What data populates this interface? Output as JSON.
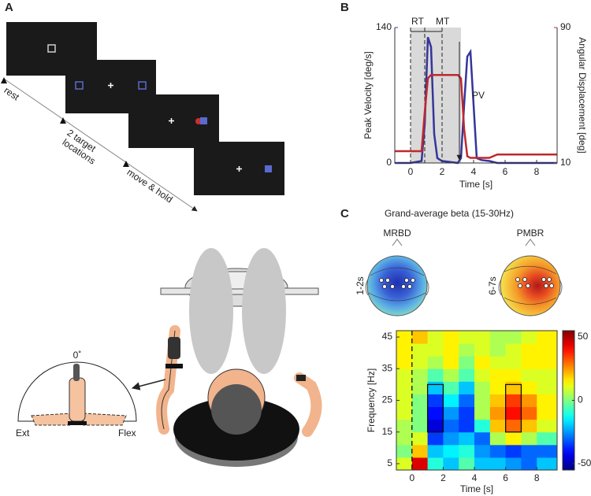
{
  "panel_labels": [
    "A",
    "B",
    "C"
  ],
  "panel_a": {
    "labels": [
      "rest",
      "2 target",
      "locations",
      "move & hold"
    ]
  },
  "setup": {
    "angle_label": "0˚",
    "left_label": "Ext",
    "right_label": "Flex"
  },
  "chart_data": [
    {
      "type": "line",
      "xlabel": "Time [s]",
      "ylabel": "Peak Velocity [deg/s]",
      "y2label": "Angular Displacement [deg]",
      "annotations": [
        "RT",
        "MT",
        "PV"
      ],
      "x": [
        -1,
        0,
        0.7,
        0.9,
        1.1,
        1.3,
        1.5,
        1.7,
        2,
        3,
        3.2,
        3.4,
        3.6,
        3.8,
        4.0,
        4.2,
        4.5,
        5,
        5.5,
        9.3
      ],
      "series": [
        {
          "name": "Peak Velocity",
          "color": "#35359a",
          "values": [
            0,
            0,
            2,
            40,
            130,
            120,
            30,
            5,
            2,
            0,
            5,
            60,
            110,
            115,
            60,
            5,
            3,
            2,
            0,
            0
          ]
        },
        {
          "name": "Angular Displacement",
          "color": "#c0282d",
          "axis": "y2",
          "values": [
            17,
            17,
            17,
            40,
            60,
            62,
            62,
            62,
            62,
            62,
            60,
            30,
            14,
            13,
            13,
            13,
            13,
            13,
            15,
            15
          ]
        }
      ],
      "shaded": [
        0,
        3.2
      ],
      "vlines": [
        0,
        0.9,
        2
      ],
      "xlim": [
        -1,
        9.3
      ],
      "xticks": [
        0,
        2,
        4,
        6,
        8
      ],
      "ylim": [
        0,
        140
      ],
      "yticks": [
        0,
        140
      ],
      "y2lim": [
        10,
        90
      ],
      "y2ticks": [
        10,
        90
      ]
    },
    {
      "type": "heatmap",
      "title": "Grand-average beta (15-30Hz)",
      "xlabel": "Time [s]",
      "ylabel": "Frequency [Hz]",
      "maps": [
        {
          "title": "MRBD",
          "window": "1-2s"
        },
        {
          "title": "PMBR",
          "window": "6-7s"
        }
      ],
      "x": [
        -0.5,
        0.5,
        1.5,
        2.5,
        3.5,
        4.5,
        5.5,
        6.5,
        7.5,
        8.5
      ],
      "y": [
        5,
        9,
        13,
        17,
        21,
        25,
        29,
        33,
        37,
        41,
        45
      ],
      "z": [
        [
          10,
          45,
          -10,
          -20,
          -5,
          -20,
          -20,
          -25,
          -30,
          -20
        ],
        [
          0,
          20,
          -20,
          -15,
          -10,
          -25,
          -30,
          -35,
          -30,
          -30
        ],
        [
          5,
          10,
          -35,
          -25,
          -20,
          -30,
          5,
          15,
          5,
          -5
        ],
        [
          5,
          0,
          -45,
          -30,
          -35,
          -10,
          20,
          30,
          20,
          10
        ],
        [
          10,
          0,
          -40,
          -25,
          -35,
          5,
          25,
          40,
          30,
          15
        ],
        [
          10,
          0,
          -35,
          -15,
          -30,
          5,
          20,
          35,
          25,
          15
        ],
        [
          10,
          5,
          -20,
          -5,
          -20,
          5,
          15,
          20,
          15,
          10
        ],
        [
          10,
          5,
          -5,
          5,
          -5,
          10,
          15,
          15,
          10,
          10
        ],
        [
          15,
          10,
          5,
          15,
          0,
          15,
          10,
          10,
          15,
          15
        ],
        [
          15,
          10,
          10,
          15,
          5,
          10,
          5,
          10,
          15,
          15
        ],
        [
          15,
          20,
          10,
          15,
          10,
          10,
          5,
          5,
          10,
          15
        ]
      ],
      "boxes": [
        {
          "x": [
            1,
            2
          ],
          "y": [
            15,
            30
          ]
        },
        {
          "x": [
            6,
            7
          ],
          "y": [
            15,
            30
          ]
        }
      ],
      "vlines": [
        0
      ],
      "xlim": [
        -1,
        9.3
      ],
      "xticks": [
        0,
        2,
        4,
        6,
        8
      ],
      "ylim": [
        3,
        47
      ],
      "yticks": [
        5,
        15,
        25,
        35,
        45
      ],
      "clim": [
        -55,
        55
      ],
      "cticks": [
        -50,
        0,
        50
      ]
    }
  ]
}
